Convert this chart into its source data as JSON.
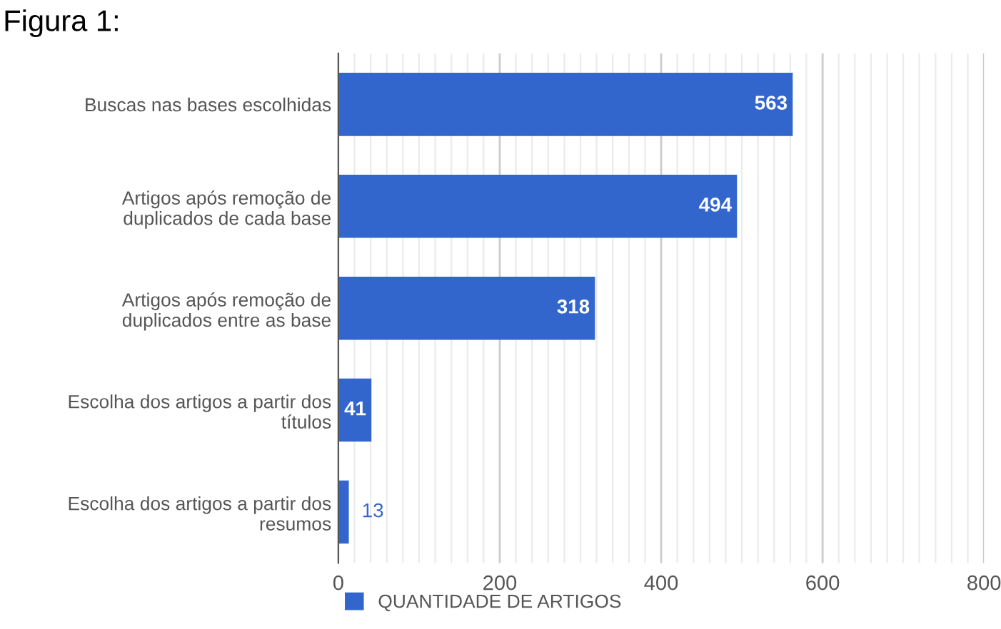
{
  "chart_data": {
    "type": "bar",
    "title": "Figura 1:",
    "orientation": "horizontal",
    "categories": [
      "Buscas nas bases escolhidas",
      "Artigos após remoção de\nduplicados de cada base",
      "Artigos após remoção de\nduplicados entre as base",
      "Escolha dos artigos a partir dos\ntítulos",
      "Escolha dos artigos a partir dos\nresumos"
    ],
    "series": [
      {
        "name": "QUANTIDADE DE ARTIGOS",
        "color": "#3366cc",
        "values": [
          563,
          494,
          318,
          41,
          13
        ]
      }
    ],
    "xlim": [
      0,
      800
    ],
    "xticks": [
      0,
      200,
      400,
      600,
      800
    ],
    "grid": "x",
    "legend": "bottom",
    "data_labels": true
  }
}
